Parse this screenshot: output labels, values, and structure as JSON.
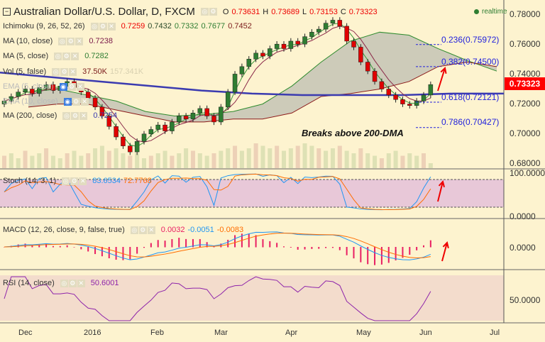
{
  "header": {
    "title": "Australian Dollar/U.S. Dollar, D, FXCM",
    "o_label": "O",
    "o": "0.73631",
    "h_label": "H",
    "h": "0.73689",
    "l_label": "L",
    "l": "0.73153",
    "c_label": "C",
    "c": "0.73323",
    "realtime": "realtime"
  },
  "legends": {
    "ichimoku": {
      "label": "Ichimoku (9, 26, 52, 26)",
      "v1": "0.7259",
      "v2": "0.7432",
      "v3": "0.7332",
      "v4": "0.7677",
      "v5": "0.7452"
    },
    "ma10": {
      "label": "MA (10, close)",
      "value": "0.7238"
    },
    "ma5": {
      "label": "MA (5, close)",
      "value": "0.7282"
    },
    "vol": {
      "label": "Vol (5, false)",
      "value": "37.50K",
      "value2": "157.341K"
    },
    "ema1": {
      "label": "EMA (5, close)"
    },
    "ema2": {
      "label": "EMA (10, close)"
    },
    "ma200": {
      "label": "MA (200, close)",
      "value": "0.7254"
    },
    "stoch": {
      "label": "Stoch (14, 3, 1)",
      "k": "83.6534",
      "d": "72.7768"
    },
    "macd": {
      "label": "MACD (12, 26, close, 9, false, true)",
      "hist": "0.0032",
      "macd": "-0.0051",
      "signal": "-0.0083"
    },
    "rsi": {
      "label": "RSI (14, close)",
      "value": "50.6001"
    }
  },
  "annotation": "Breaks above 200-DMA",
  "fib": [
    {
      "label": "0.236(0.75972)",
      "level": 0.75972
    },
    {
      "label": "0.382(0.74500)",
      "level": 0.745
    },
    {
      "label": "0.618(0.72121)",
      "level": 0.72121
    },
    {
      "label": "0.786(0.70427)",
      "level": 0.70427
    }
  ],
  "price_axis": [
    "0.78000",
    "0.76000",
    "0.74000",
    "0.72000",
    "0.70000",
    "0.68000"
  ],
  "last_price": "0.73323",
  "stoch_axis": [
    "100.0000",
    "0.0000"
  ],
  "macd_axis": [
    "0.0000"
  ],
  "rsi_axis": [
    "50.0000"
  ],
  "months": [
    "Dec",
    "2016",
    "Feb",
    "Mar",
    "Apr",
    "May",
    "Jun",
    "Jul"
  ],
  "colors": {
    "bull": "#2e7d32",
    "bear": "#e00000",
    "ma200": "#3b3bb0",
    "stochK": "#2196f3",
    "stochD": "#ff6d00",
    "rsi": "#8e24aa",
    "hist": "#e91e63"
  },
  "chart_data": {
    "type": "candlestick",
    "title": "Australian Dollar/U.S. Dollar, D, FXCM",
    "ylim": [
      0.675,
      0.785
    ],
    "close": [
      0.722,
      0.725,
      0.728,
      0.73,
      0.727,
      0.731,
      0.733,
      0.729,
      0.732,
      0.735,
      0.731,
      0.728,
      0.724,
      0.718,
      0.712,
      0.705,
      0.698,
      0.692,
      0.688,
      0.695,
      0.7,
      0.703,
      0.706,
      0.702,
      0.708,
      0.712,
      0.71,
      0.714,
      0.717,
      0.712,
      0.708,
      0.718,
      0.728,
      0.74,
      0.745,
      0.75,
      0.754,
      0.752,
      0.757,
      0.76,
      0.757,
      0.762,
      0.76,
      0.765,
      0.768,
      0.77,
      0.774,
      0.776,
      0.772,
      0.762,
      0.758,
      0.748,
      0.742,
      0.735,
      0.73,
      0.726,
      0.723,
      0.72,
      0.719,
      0.722,
      0.726,
      0.733
    ],
    "ma200": [
      0.741,
      0.738,
      0.735,
      0.732,
      0.729,
      0.727,
      0.726,
      0.726,
      0.726,
      0.727,
      0.727
    ],
    "cloud_top": [
      0.728,
      0.73,
      0.726,
      0.722,
      0.715,
      0.712,
      0.713,
      0.715,
      0.72,
      0.732,
      0.748,
      0.762,
      0.768,
      0.766,
      0.757,
      0.749,
      0.742
    ],
    "cloud_bottom": [
      0.718,
      0.72,
      0.72,
      0.716,
      0.712,
      0.708,
      0.708,
      0.71,
      0.71,
      0.714,
      0.725,
      0.727,
      0.73,
      0.735,
      0.745,
      0.748,
      0.745
    ],
    "volume": [
      5,
      6,
      4,
      7,
      5,
      6,
      8,
      5,
      4,
      6,
      7,
      5,
      6,
      8,
      9,
      7,
      8,
      6,
      5,
      6,
      4,
      5,
      6,
      7,
      5,
      6,
      8,
      7,
      6,
      5,
      6,
      7,
      8,
      9,
      7,
      8,
      10,
      9,
      8,
      9,
      7,
      8,
      9,
      10,
      9,
      8,
      7,
      8,
      9,
      7,
      6,
      8,
      6,
      5,
      4,
      6,
      7,
      5,
      6,
      5,
      6,
      2
    ]
  }
}
